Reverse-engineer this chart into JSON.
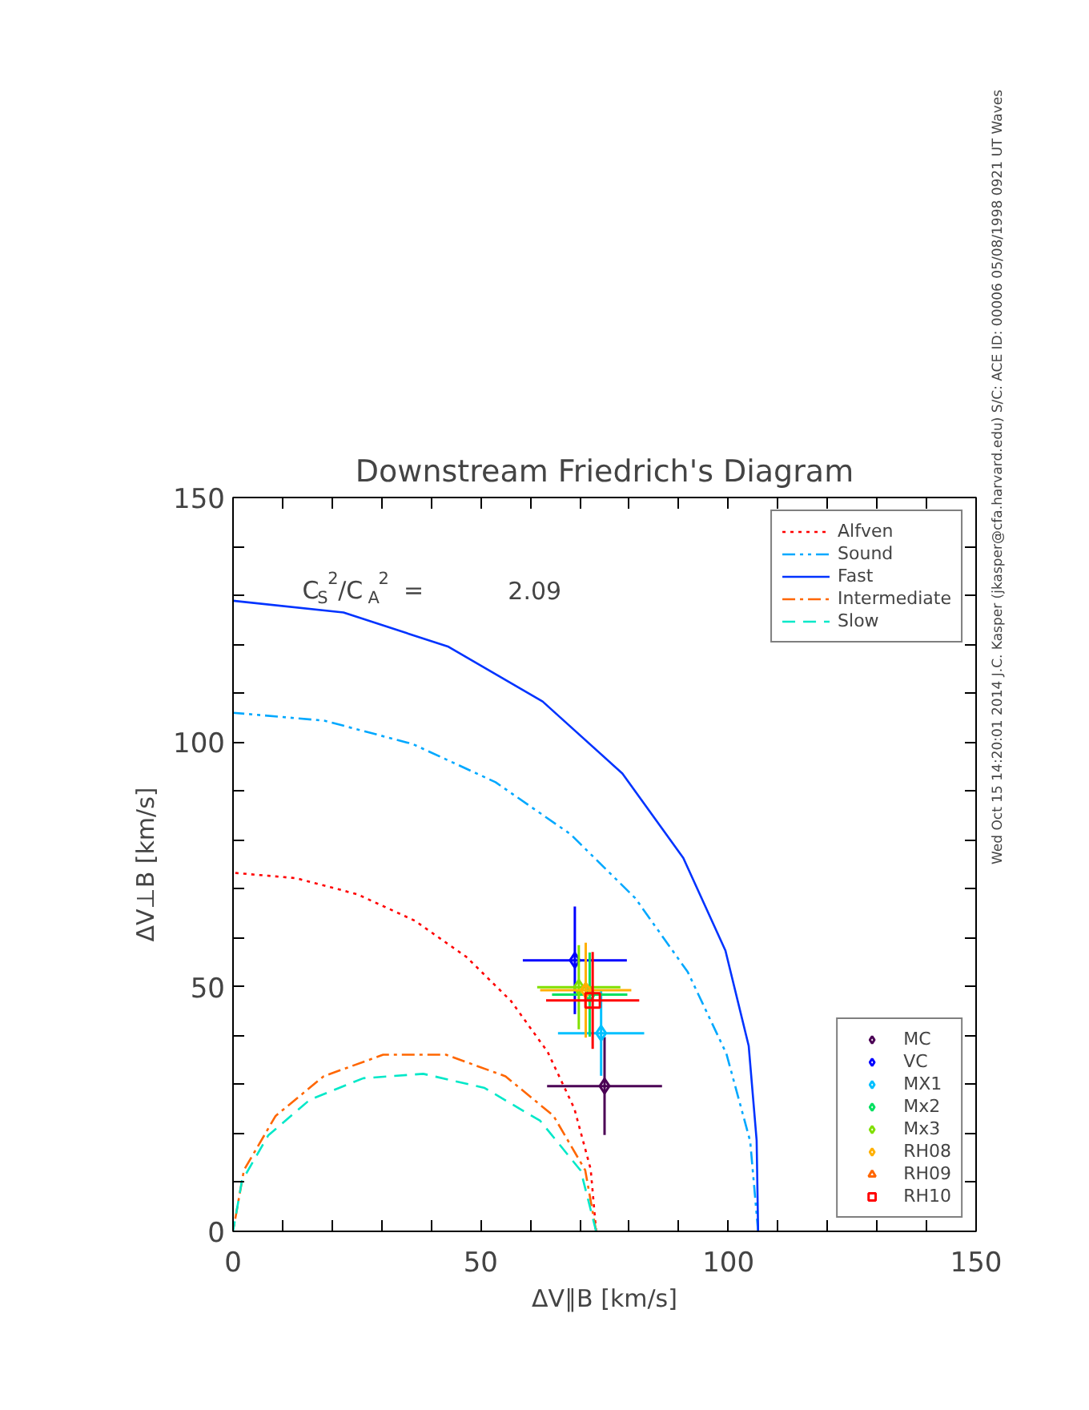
{
  "chart_data": {
    "type": "line",
    "title": "Downstream Friedrich's Diagram",
    "xlabel": "ΔV∥B [km/s]",
    "ylabel": "ΔV⊥B [km/s]",
    "xlim": [
      0,
      150
    ],
    "ylim": [
      0,
      150
    ],
    "xticks": [
      0,
      {
        "value": 10,
        "label": null
      },
      {
        "value": 20,
        "label": null
      },
      {
        "value": 30,
        "label": null
      },
      {
        "value": 40,
        "label": null
      },
      50,
      {
        "value": 60,
        "label": null
      },
      {
        "value": 70,
        "label": null
      },
      {
        "value": 80,
        "label": null
      },
      {
        "value": 90,
        "label": null
      },
      100,
      {
        "value": 110,
        "label": null
      },
      {
        "value": 120,
        "label": null
      },
      {
        "value": 130,
        "label": null
      },
      {
        "value": 140,
        "label": null
      },
      150
    ],
    "yticks": [
      0,
      {
        "value": 10,
        "label": null
      },
      {
        "value": 20,
        "label": null
      },
      {
        "value": 30,
        "label": null
      },
      {
        "value": 40,
        "label": null
      },
      50,
      {
        "value": 60,
        "label": null
      },
      {
        "value": 70,
        "label": null
      },
      {
        "value": 80,
        "label": null
      },
      {
        "value": 90,
        "label": null
      },
      100,
      {
        "value": 110,
        "label": null
      },
      {
        "value": 120,
        "label": null
      },
      {
        "value": 130,
        "label": null
      },
      {
        "value": 140,
        "label": null
      },
      150
    ],
    "legend": "top right",
    "annotations": [
      "C$_{S}$$^{2}$/C$_{A}$$^{2}$ =      2.09",
      "Wed Oct 15 14:20:01 2014   J.C. Kasper (jkasper@cfa.harvard.edu)   S/C: ACE ID: 00006 05/08/1998   0921 UT Waves"
    ],
    "series": [
      {
        "name": "Alfven",
        "color": "#ff0000",
        "line_style": "dotted",
        "x": [
          73.3,
          72.2,
          68.9,
          63.5,
          56.1,
          47.1,
          36.7,
          25.1,
          12.7,
          0
        ],
        "values": [
          0,
          12.7,
          25.1,
          36.7,
          47.1,
          56.1,
          63.5,
          68.9,
          72.2,
          73.3
        ]
      },
      {
        "name": "Sound",
        "color": "#00a8ff",
        "line_style": "dashdotdot",
        "x": [
          106,
          104.4,
          99.6,
          91.8,
          81.2,
          68.1,
          53.0,
          36.3,
          18.4,
          0
        ],
        "values": [
          0,
          18.4,
          36.3,
          53.0,
          68.1,
          81.2,
          91.8,
          99.6,
          104.4,
          106
        ]
      },
      {
        "name": "Fast",
        "color": "#0033ff",
        "line_style": "solid",
        "x": [
          106.0,
          105.7,
          104.1,
          99.4,
          90.9,
          78.6,
          62.5,
          43.5,
          22.3,
          0
        ],
        "values": [
          0,
          18.6,
          37.9,
          57.4,
          76.3,
          93.6,
          108.3,
          119.5,
          126.5,
          128.9
        ]
      },
      {
        "name": "Intermediate",
        "color": "#ff6600",
        "line_style": "dashdot",
        "x": [
          73.3,
          71.1,
          64.7,
          55.0,
          43.0,
          30.3,
          18.3,
          8.6,
          2.2,
          0
        ],
        "values": [
          0,
          12.5,
          23.6,
          31.7,
          36.1,
          36.1,
          31.7,
          23.6,
          12.5,
          0
        ]
      },
      {
        "name": "Slow",
        "color": "#00e8c8",
        "line_style": "dashed",
        "x": [
          73.3,
          70.2,
          62.0,
          50.8,
          38.4,
          26.3,
          15.5,
          7.1,
          1.8,
          0
        ],
        "values": [
          0,
          12.4,
          22.6,
          29.3,
          32.2,
          31.3,
          26.9,
          19.6,
          10.3,
          0
        ]
      },
      {
        "name": "MC",
        "type": "scatter",
        "marker": "diamond",
        "color": "#4b0055",
        "x": [
          75.0
        ],
        "values": [
          29.7
        ],
        "xerrors": [
          11.6
        ],
        "errors": [
          10
        ]
      },
      {
        "name": "VC",
        "type": "scatter",
        "marker": "diamond",
        "color": "#0000ff",
        "x": [
          69.0
        ],
        "values": [
          55.4
        ],
        "xerrors": [
          10.5
        ],
        "errors": [
          11
        ]
      },
      {
        "name": "MX1",
        "type": "scatter",
        "marker": "diamond",
        "color": "#00c0ff",
        "x": [
          74.3
        ],
        "values": [
          40.5
        ],
        "xerrors": [
          8.7
        ],
        "errors": [
          8.7
        ]
      },
      {
        "name": "Mx2",
        "type": "scatter",
        "marker": "diamond",
        "color": "#00e060",
        "x": [
          72.0
        ],
        "values": [
          48.4
        ],
        "xerrors": [
          7.6
        ],
        "errors": [
          8.6
        ]
      },
      {
        "name": "Mx3",
        "type": "scatter",
        "marker": "diamond",
        "color": "#80e000",
        "x": [
          69.8
        ],
        "values": [
          49.9
        ],
        "xerrors": [
          8.4
        ],
        "errors": [
          8.6
        ]
      },
      {
        "name": "RH08",
        "type": "scatter",
        "marker": "diamond",
        "color": "#ffb000",
        "x": [
          71.2
        ],
        "values": [
          49.3
        ],
        "xerrors": [
          9.2
        ],
        "errors": [
          9.7
        ]
      },
      {
        "name": "RH09",
        "type": "scatter",
        "marker": "triangle",
        "color": "#ff6600",
        "x": [
          null
        ],
        "values": [
          null
        ]
      },
      {
        "name": "RH10",
        "type": "scatter",
        "marker": "square",
        "color": "#ff0000",
        "x": [
          72.6
        ],
        "values": [
          47.2
        ],
        "xerrors": [
          9.4
        ],
        "errors": [
          9.9
        ]
      }
    ]
  }
}
